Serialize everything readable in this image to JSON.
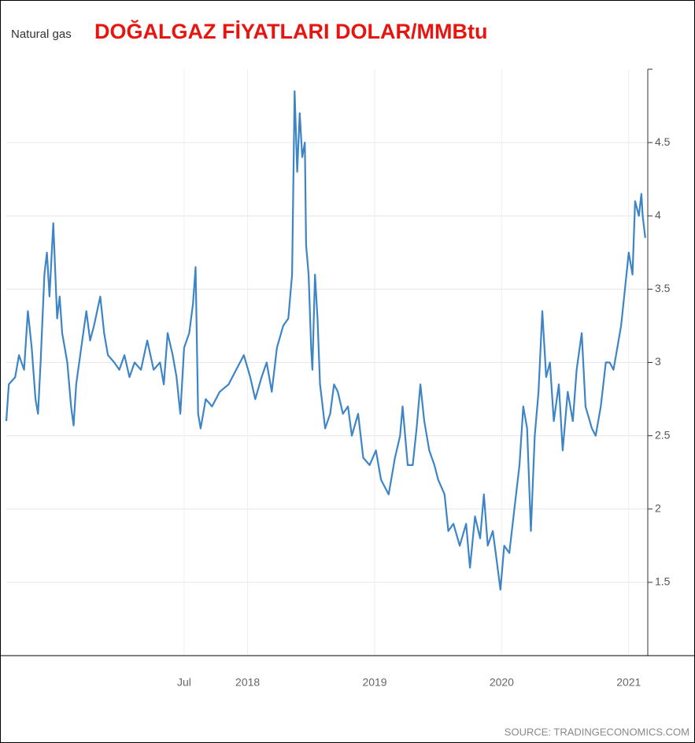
{
  "chart_data": {
    "type": "line",
    "subtitle": "Natural gas",
    "title": "DOĞALGAZ FİYATLARI DOLAR/MMBtu",
    "source": "SOURCE: TRADINGECONOMICS.COM",
    "x": [
      2016.1,
      2016.12,
      2016.17,
      2016.2,
      2016.24,
      2016.27,
      2016.3,
      2016.33,
      2016.35,
      2016.37,
      2016.4,
      2016.42,
      2016.44,
      2016.47,
      2016.5,
      2016.52,
      2016.54,
      2016.58,
      2016.61,
      2016.63,
      2016.65,
      2016.69,
      2016.73,
      2016.76,
      2016.79,
      2016.84,
      2016.87,
      2016.9,
      2016.95,
      2016.99,
      2017.03,
      2017.07,
      2017.11,
      2017.16,
      2017.21,
      2017.26,
      2017.31,
      2017.34,
      2017.37,
      2017.41,
      2017.44,
      2017.47,
      2017.5,
      2017.54,
      2017.57,
      2017.59,
      2017.61,
      2017.63,
      2017.67,
      2017.72,
      2017.78,
      2017.85,
      2017.91,
      2017.97,
      2018.02,
      2018.06,
      2018.11,
      2018.15,
      2018.19,
      2018.23,
      2018.28,
      2018.32,
      2018.35,
      2018.37,
      2018.39,
      2018.41,
      2018.43,
      2018.45,
      2018.46,
      2018.48,
      2018.5,
      2018.51,
      2018.53,
      2018.55,
      2018.57,
      2018.59,
      2018.61,
      2018.65,
      2018.68,
      2018.71,
      2018.75,
      2018.79,
      2018.82,
      2018.87,
      2018.91,
      2018.96,
      2019.01,
      2019.05,
      2019.08,
      2019.11,
      2019.16,
      2019.2,
      2019.22,
      2019.26,
      2019.3,
      2019.33,
      2019.36,
      2019.39,
      2019.43,
      2019.47,
      2019.5,
      2019.55,
      2019.58,
      2019.62,
      2019.67,
      2019.72,
      2019.75,
      2019.79,
      2019.83,
      2019.86,
      2019.89,
      2019.93,
      2019.96,
      2019.99,
      2020.02,
      2020.06,
      2020.1,
      2020.14,
      2020.17,
      2020.2,
      2020.23,
      2020.26,
      2020.29,
      2020.32,
      2020.35,
      2020.38,
      2020.41,
      2020.45,
      2020.48,
      2020.52,
      2020.56,
      2020.59,
      2020.63,
      2020.66,
      2020.71,
      2020.74,
      2020.78,
      2020.82,
      2020.85,
      2020.88,
      2020.91,
      2020.94,
      2020.97,
      2021.0,
      2021.03,
      2021.05,
      2021.08,
      2021.1,
      2021.11,
      2021.13
    ],
    "series": [
      {
        "name": "Natural gas",
        "color": "#3d85c6",
        "values": [
          2.6,
          2.85,
          2.9,
          3.05,
          2.95,
          3.35,
          3.1,
          2.75,
          2.65,
          3.0,
          3.6,
          3.75,
          3.45,
          3.95,
          3.3,
          3.45,
          3.2,
          3.0,
          2.7,
          2.57,
          2.85,
          3.1,
          3.35,
          3.15,
          3.25,
          3.45,
          3.2,
          3.05,
          3.0,
          2.95,
          3.05,
          2.9,
          3.0,
          2.95,
          3.15,
          2.95,
          3.0,
          2.85,
          3.2,
          3.05,
          2.9,
          2.65,
          3.1,
          3.2,
          3.4,
          3.65,
          2.65,
          2.55,
          2.75,
          2.7,
          2.8,
          2.85,
          2.95,
          3.05,
          2.9,
          2.75,
          2.9,
          3.0,
          2.8,
          3.1,
          3.25,
          3.3,
          3.6,
          4.85,
          4.3,
          4.7,
          4.4,
          4.5,
          3.8,
          3.6,
          3.1,
          2.95,
          3.6,
          3.3,
          2.85,
          2.7,
          2.55,
          2.65,
          2.85,
          2.8,
          2.65,
          2.7,
          2.5,
          2.65,
          2.35,
          2.3,
          2.4,
          2.2,
          2.15,
          2.1,
          2.35,
          2.5,
          2.7,
          2.3,
          2.3,
          2.55,
          2.85,
          2.6,
          2.4,
          2.3,
          2.2,
          2.1,
          1.85,
          1.9,
          1.75,
          1.9,
          1.6,
          1.95,
          1.8,
          2.1,
          1.75,
          1.85,
          1.65,
          1.45,
          1.75,
          1.7,
          2.0,
          2.3,
          2.7,
          2.55,
          1.85,
          2.5,
          2.8,
          3.35,
          2.9,
          3.0,
          2.6,
          2.85,
          2.4,
          2.8,
          2.6,
          2.95,
          3.2,
          2.7,
          2.55,
          2.5,
          2.7,
          3.0,
          3.0,
          2.95,
          3.1,
          3.25,
          3.5,
          3.75,
          3.6,
          4.1,
          4.0,
          4.15,
          4.0,
          3.85
        ]
      }
    ],
    "xlim": [
      2016.1,
      2021.15
    ],
    "xticks": [
      {
        "value": 2017.5,
        "label": "Jul"
      },
      2018,
      2019,
      2020,
      2021
    ],
    "ylim": [
      1,
      5
    ],
    "yticks": [
      1.5,
      2,
      2.5,
      3,
      3.5,
      4,
      4.5
    ],
    "grid": true
  }
}
